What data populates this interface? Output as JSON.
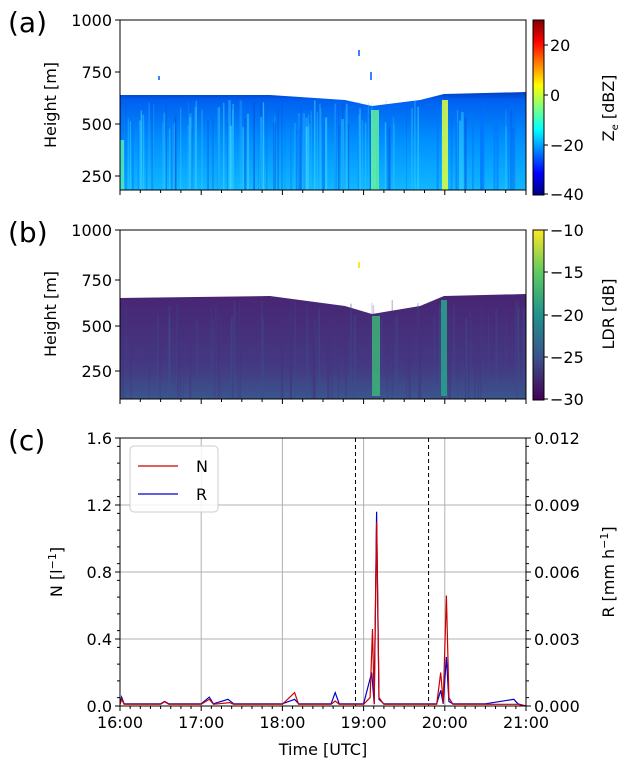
{
  "panels": {
    "a": {
      "label": "(a)",
      "ylabel": "Height [m]",
      "yticks": [
        "1000",
        "750",
        "500",
        "250"
      ],
      "colorbar": {
        "label": "Z",
        "label_sub": "e",
        "label_unit": "[dBZ]",
        "ticks": [
          "20",
          "0",
          "−20",
          "−40"
        ],
        "colormap": "jet"
      }
    },
    "b": {
      "label": "(b)",
      "ylabel": "Height [m]",
      "yticks": [
        "1000",
        "750",
        "500",
        "250"
      ],
      "colorbar": {
        "label": "LDR [dB]",
        "ticks": [
          "−10",
          "−15",
          "−20",
          "−25",
          "−30"
        ],
        "colormap": "viridis"
      }
    },
    "c": {
      "label": "(c)",
      "ylabel_left": "N [l",
      "ylabel_left_sup": "−1",
      "ylabel_left_close": "]",
      "ylabel_right": "R [mm h",
      "ylabel_right_sup": "−1",
      "ylabel_right_close": "]",
      "xlabel": "Time [UTC]",
      "yticks_left": [
        "1.6",
        "1.2",
        "0.8",
        "0.4",
        "0.0"
      ],
      "yticks_right": [
        "0.012",
        "0.009",
        "0.006",
        "0.003",
        "0.000"
      ],
      "xticks": [
        "16:00",
        "17:00",
        "18:00",
        "19:00",
        "20:00",
        "21:00"
      ],
      "legend": [
        "N",
        "R"
      ]
    }
  },
  "chart_data": [
    {
      "type": "heatmap",
      "panel": "a",
      "x_range_utc": [
        "16:00",
        "21:00"
      ],
      "ylim": [
        100,
        1000
      ],
      "clim": [
        -40,
        30
      ],
      "colormap": "jet",
      "cloud_top_m": [
        [
          16.0,
          620
        ],
        [
          18.0,
          615
        ],
        [
          18.8,
          580
        ],
        [
          19.0,
          560
        ],
        [
          19.4,
          580
        ],
        [
          20.0,
          620
        ],
        [
          21.0,
          640
        ]
      ],
      "background_dbz": -25,
      "features": [
        {
          "time": 19.12,
          "dbz": 5
        },
        {
          "time": 20.02,
          "dbz": 10
        },
        {
          "time": 16.05,
          "dbz": -10
        }
      ]
    },
    {
      "type": "heatmap",
      "panel": "b",
      "x_range_utc": [
        "16:00",
        "21:00"
      ],
      "ylim": [
        100,
        1000
      ],
      "clim": [
        -30,
        -10
      ],
      "colormap": "viridis",
      "cloud_top_m": [
        [
          16.0,
          625
        ],
        [
          18.0,
          625
        ],
        [
          18.8,
          590
        ],
        [
          19.0,
          570
        ],
        [
          19.4,
          590
        ],
        [
          20.0,
          630
        ],
        [
          21.0,
          640
        ]
      ],
      "background_db": -28,
      "features": [
        {
          "time": 19.12,
          "db": -20
        },
        {
          "time": 20.02,
          "db": -19
        }
      ]
    },
    {
      "type": "line",
      "panel": "c",
      "xlim": [
        16.0,
        21.0
      ],
      "ylim_left": [
        0,
        1.6
      ],
      "ylim_right": [
        0,
        0.012
      ],
      "grid": true,
      "legend_position": "upper-left",
      "vlines_dashed": [
        18.9,
        19.8
      ],
      "series": [
        {
          "name": "N",
          "color": "#cc0000",
          "axis": "left",
          "points": [
            [
              16.0,
              0.01
            ],
            [
              16.02,
              0.04
            ],
            [
              16.05,
              0.01
            ],
            [
              16.5,
              0.01
            ],
            [
              16.55,
              0.025
            ],
            [
              16.6,
              0.01
            ],
            [
              17.0,
              0.01
            ],
            [
              17.1,
              0.04
            ],
            [
              17.15,
              0.01
            ],
            [
              17.35,
              0.02
            ],
            [
              17.4,
              0.01
            ],
            [
              18.0,
              0.01
            ],
            [
              18.15,
              0.08
            ],
            [
              18.2,
              0.01
            ],
            [
              18.6,
              0.01
            ],
            [
              18.65,
              0.03
            ],
            [
              18.7,
              0.01
            ],
            [
              19.0,
              0.01
            ],
            [
              19.08,
              0.05
            ],
            [
              19.11,
              0.46
            ],
            [
              19.13,
              0.01
            ],
            [
              19.16,
              1.1
            ],
            [
              19.19,
              0.05
            ],
            [
              19.25,
              0.01
            ],
            [
              19.9,
              0.01
            ],
            [
              19.95,
              0.2
            ],
            [
              19.98,
              0.02
            ],
            [
              20.02,
              0.66
            ],
            [
              20.05,
              0.05
            ],
            [
              20.1,
              0.01
            ],
            [
              20.5,
              0.01
            ],
            [
              20.9,
              0.01
            ],
            [
              21.0,
              0.0
            ]
          ]
        },
        {
          "name": "R",
          "color": "#0000cc",
          "axis": "right",
          "points": [
            [
              16.0,
              0.0001
            ],
            [
              16.02,
              0.0004
            ],
            [
              16.05,
              0.0001
            ],
            [
              16.5,
              0.0001
            ],
            [
              16.55,
              0.0002
            ],
            [
              16.6,
              0.0001
            ],
            [
              17.0,
              0.0001
            ],
            [
              17.1,
              0.0004
            ],
            [
              17.15,
              0.0001
            ],
            [
              17.33,
              0.0003
            ],
            [
              17.4,
              0.0001
            ],
            [
              18.0,
              0.0001
            ],
            [
              18.15,
              0.0003
            ],
            [
              18.2,
              0.0001
            ],
            [
              18.6,
              0.0001
            ],
            [
              18.65,
              0.0006
            ],
            [
              18.7,
              0.0001
            ],
            [
              19.0,
              0.0001
            ],
            [
              19.1,
              0.0015
            ],
            [
              19.13,
              0.0001
            ],
            [
              19.16,
              0.0087
            ],
            [
              19.19,
              0.0003
            ],
            [
              19.25,
              0.0001
            ],
            [
              19.9,
              0.0001
            ],
            [
              19.95,
              0.0007
            ],
            [
              19.98,
              0.0001
            ],
            [
              20.02,
              0.0022
            ],
            [
              20.05,
              0.0002
            ],
            [
              20.1,
              0.0001
            ],
            [
              20.5,
              0.0001
            ],
            [
              20.85,
              0.0003
            ],
            [
              20.9,
              0.0001
            ],
            [
              21.0,
              0.0
            ]
          ]
        }
      ]
    }
  ]
}
